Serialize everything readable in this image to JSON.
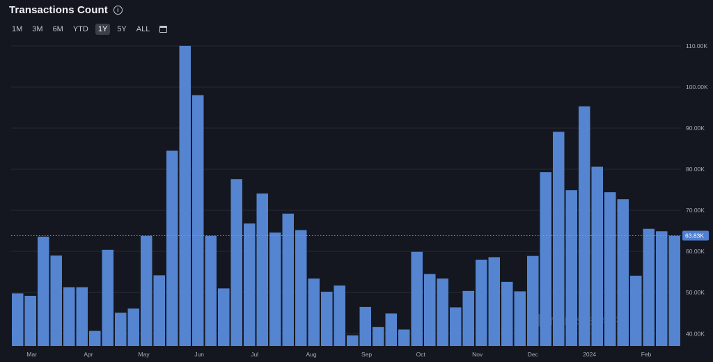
{
  "header": {
    "title": "Transactions Count",
    "info_icon": "info-icon"
  },
  "ranges": {
    "items": [
      "1M",
      "3M",
      "6M",
      "YTD",
      "1Y",
      "5Y",
      "ALL"
    ],
    "active": "1Y",
    "calendar_icon": "calendar-icon"
  },
  "watermark": "MESSARI",
  "colors": {
    "background": "#141720",
    "bar": "#5584d0",
    "grid": "#262a35",
    "current_badge": "#4f7fd0"
  },
  "chart_data": {
    "type": "bar",
    "title": "Transactions Count",
    "ylim": [
      37000,
      111000
    ],
    "y_ticks": [
      40000,
      50000,
      60000,
      70000,
      80000,
      90000,
      100000,
      110000
    ],
    "y_tick_labels": [
      "40.00K",
      "50.00K",
      "60.00K",
      "70.00K",
      "80.00K",
      "90.00K",
      "100.00K",
      "110.00K"
    ],
    "x_month_labels": [
      {
        "label": "Mar",
        "bar_index": 1.6
      },
      {
        "label": "Apr",
        "bar_index": 6.0
      },
      {
        "label": "May",
        "bar_index": 10.3
      },
      {
        "label": "Jun",
        "bar_index": 14.6
      },
      {
        "label": "Jul",
        "bar_index": 18.9
      },
      {
        "label": "Aug",
        "bar_index": 23.3
      },
      {
        "label": "Sep",
        "bar_index": 27.6
      },
      {
        "label": "Oct",
        "bar_index": 31.8
      },
      {
        "label": "Nov",
        "bar_index": 36.2
      },
      {
        "label": "Dec",
        "bar_index": 40.5
      },
      {
        "label": "2024",
        "bar_index": 44.9
      },
      {
        "label": "Feb",
        "bar_index": 49.3
      }
    ],
    "values": [
      49800,
      49200,
      63600,
      59000,
      51300,
      51300,
      40700,
      60400,
      45100,
      46100,
      63800,
      54200,
      84500,
      110000,
      98000,
      63800,
      51000,
      77600,
      66800,
      74100,
      64600,
      69200,
      65200,
      53400,
      50200,
      51700,
      39600,
      46500,
      41600,
      44900,
      41000,
      59900,
      54500,
      53400,
      46400,
      50400,
      58000,
      58600,
      52600,
      50300,
      58900,
      79300,
      89100,
      74900,
      95300,
      80600,
      74400,
      72700,
      54100,
      65500,
      64900,
      63830
    ],
    "current_value": 63830,
    "current_label": "63.83K",
    "grid": true
  }
}
